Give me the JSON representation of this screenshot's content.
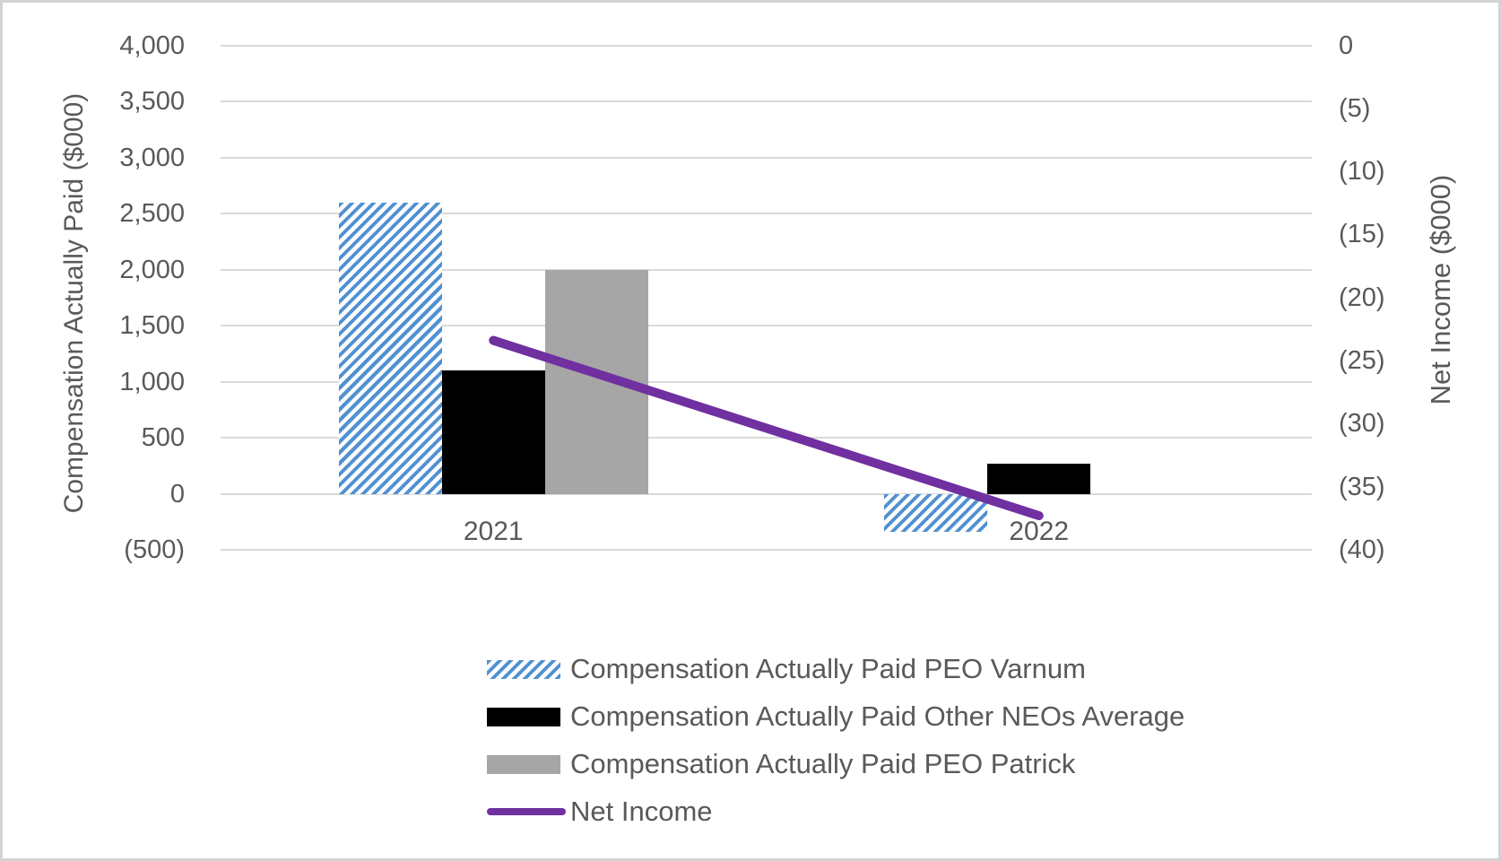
{
  "chart_data": {
    "type": "combo_bar_line",
    "title": "",
    "categories": [
      "2021",
      "2022"
    ],
    "bar_series": [
      {
        "name": "Compensation Actually Paid PEO Varnum",
        "fill": "hatched",
        "color": "#5291D1",
        "values": [
          2600,
          -340
        ]
      },
      {
        "name": "Compensation Actually Paid Other NEOs Average",
        "fill": "solid",
        "color": "#000000",
        "values": [
          1100,
          270
        ]
      },
      {
        "name": "Compensation Actually Paid PEO Patrick",
        "fill": "solid",
        "color": "#A6A6A6",
        "values": [
          2000,
          null
        ]
      }
    ],
    "line_series": [
      {
        "name": "Net Income",
        "color": "#7030A0",
        "axis": "right",
        "values": [
          -23.4,
          -37.3
        ]
      }
    ],
    "left_axis": {
      "title": "Compensation Actually Paid ($000)",
      "max": 4000,
      "min": -500,
      "step": 500,
      "tick_labels": [
        "4,000",
        "3,500",
        "3,000",
        "2,500",
        "2,000",
        "1,500",
        "1,000",
        "500",
        "0",
        "(500)"
      ]
    },
    "right_axis": {
      "title": "Net Income ($000)",
      "max": 0,
      "min": -40,
      "step": 5,
      "tick_labels": [
        "0",
        "(5)",
        "(10)",
        "(15)",
        "(20)",
        "(25)",
        "(30)",
        "(35)",
        "(40)"
      ]
    },
    "legend": [
      "Compensation Actually Paid PEO Varnum",
      "Compensation Actually Paid Other NEOs Average",
      "Compensation Actually Paid PEO Patrick",
      "Net Income"
    ],
    "grid": true,
    "legend_position": "bottom"
  },
  "colors": {
    "hatch_blue": "#5291D1",
    "hatch_bg": "#FFFFFF",
    "bar_black": "#000000",
    "bar_gray": "#A6A6A6",
    "line_purple": "#7030A0",
    "gridline": "#D9D9D9",
    "text": "#595959",
    "border": "#D4D2D2"
  }
}
